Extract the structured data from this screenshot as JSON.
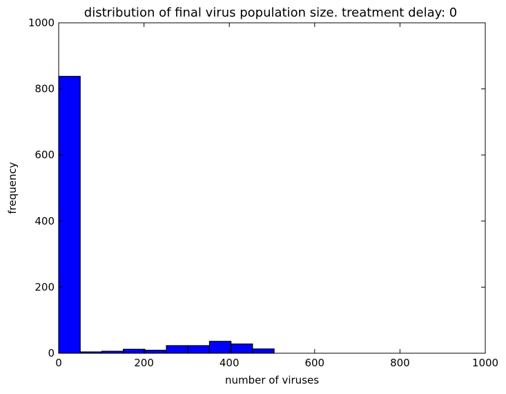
{
  "chart_data": {
    "type": "bar",
    "title": "distribution of final virus population size. treatment delay: 0",
    "xlabel": "number of viruses",
    "ylabel": "frequency",
    "xlim": [
      0,
      1000
    ],
    "ylim": [
      0,
      1000
    ],
    "x_ticks": [
      0,
      200,
      400,
      600,
      800,
      1000
    ],
    "y_ticks": [
      0,
      200,
      400,
      600,
      800,
      1000
    ],
    "grid": false,
    "bar_color": "#0000ff",
    "bin_edges": [
      0,
      50.5,
      101,
      151.5,
      202,
      252.5,
      303,
      353.5,
      404,
      454.5,
      505
    ],
    "values": [
      838,
      4,
      6,
      12,
      9,
      23,
      23,
      36,
      28,
      13
    ]
  }
}
